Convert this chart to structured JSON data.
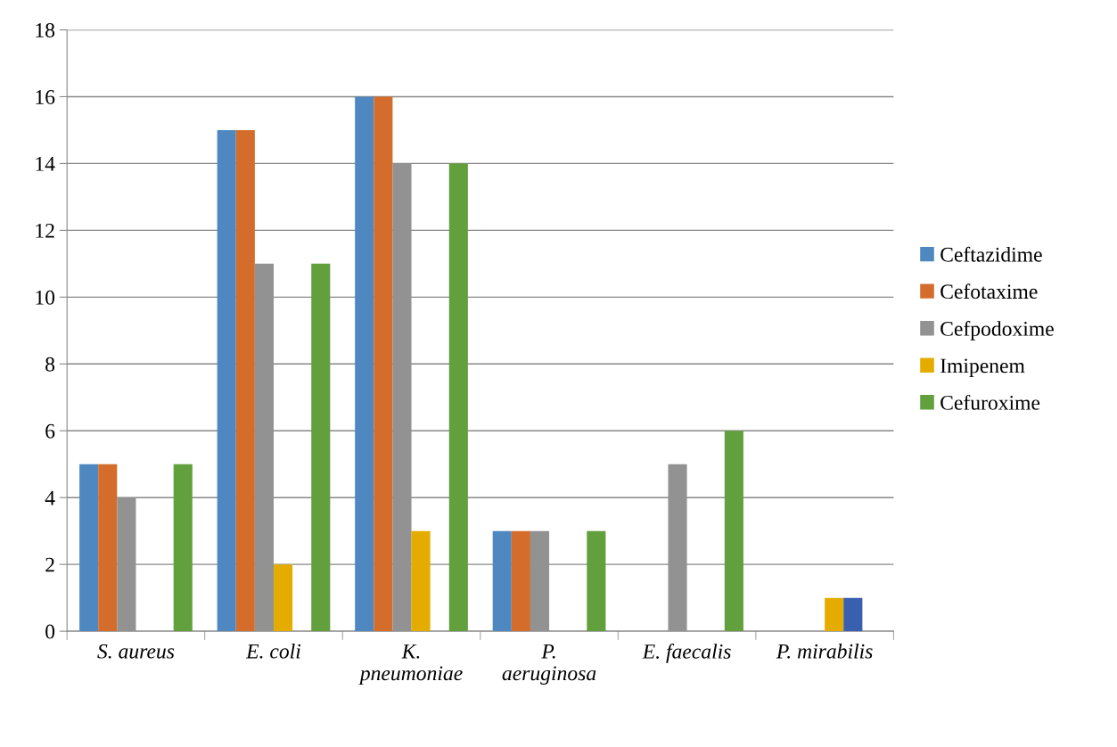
{
  "chart_data": {
    "type": "bar",
    "categories": [
      "S. aureus",
      "E. coli",
      "K. pneumoniae",
      "P. aeruginosa",
      "E. faecalis",
      "P. mirabilis"
    ],
    "series": [
      {
        "name": "Ceftazidime",
        "color": "#4f88c0",
        "values": [
          5,
          15,
          16,
          3,
          0,
          0
        ]
      },
      {
        "name": "Cefotaxime",
        "color": "#d46d2b",
        "values": [
          5,
          15,
          16,
          3,
          0,
          0
        ]
      },
      {
        "name": "Cefpodoxime",
        "color": "#929292",
        "values": [
          4,
          11,
          14,
          3,
          5,
          0
        ]
      },
      {
        "name": "Imipenem",
        "color": "#e5ac00",
        "values": [
          0,
          2,
          3,
          0,
          0,
          1
        ]
      },
      {
        "color": "#3a5fae",
        "values": [
          0,
          0,
          0,
          0,
          0,
          1
        ]
      },
      {
        "name": "Cefuroxime",
        "color": "#62a03e",
        "values": [
          5,
          11,
          14,
          3,
          6,
          0
        ]
      }
    ],
    "ylim": [
      0,
      18
    ],
    "yticks": [
      0,
      2,
      4,
      6,
      8,
      10,
      12,
      14,
      16,
      18
    ],
    "grid": "y",
    "legend": "right"
  }
}
